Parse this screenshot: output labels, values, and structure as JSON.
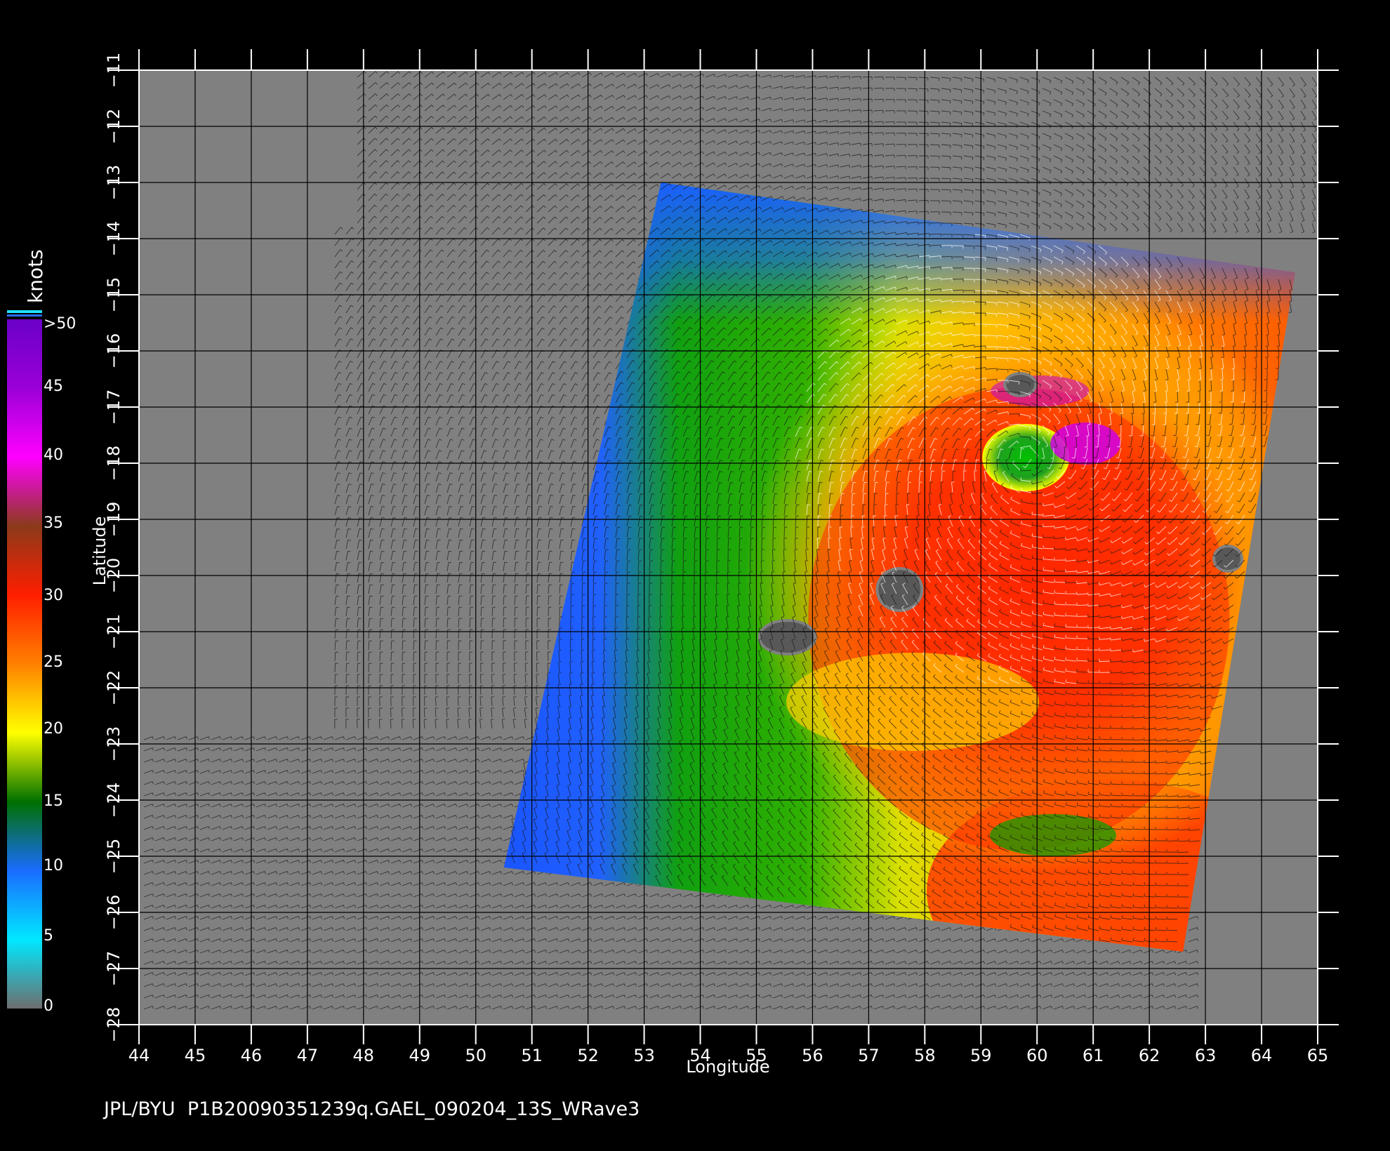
{
  "map": {
    "x_axis_label": "Longitude",
    "y_axis_label": "Latitude",
    "lon_range": [
      44,
      65
    ],
    "lat_range": [
      -28,
      -11
    ],
    "lon_ticks": [
      "44",
      "45",
      "46",
      "47",
      "48",
      "49",
      "50",
      "51",
      "52",
      "53",
      "54",
      "55",
      "56",
      "57",
      "58",
      "59",
      "60",
      "61",
      "62",
      "63",
      "64",
      "65"
    ],
    "lat_ticks": [
      "-11",
      "-12",
      "-13",
      "-14",
      "-15",
      "-16",
      "-17",
      "-18",
      "-19",
      "-20",
      "-21",
      "-22",
      "-23",
      "-24",
      "-25",
      "-26",
      "-27",
      "-28"
    ],
    "grid": true,
    "background_color": "#808080",
    "swath_corners_lonlat": [
      [
        53.3,
        -13.0
      ],
      [
        64.6,
        -14.6
      ],
      [
        62.6,
        -26.7
      ],
      [
        50.5,
        -25.2
      ]
    ],
    "eye_center_lonlat": [
      59.8,
      -17.9
    ],
    "land_masses_lonlat": [
      {
        "name": "",
        "center": [
          55.55,
          -21.1
        ]
      },
      {
        "name": "",
        "center": [
          57.55,
          -20.25
        ]
      },
      {
        "name": "",
        "center": [
          63.4,
          -19.7
        ]
      },
      {
        "name": "",
        "center": [
          59.7,
          -16.6
        ]
      }
    ]
  },
  "colorbar": {
    "title": "knots",
    "labels": [
      ">50",
      "45",
      "40",
      "35",
      "30",
      "25",
      "20",
      "15",
      "10",
      "5",
      "0"
    ],
    "stops": [
      {
        "v": 0,
        "color": "#6e6e6e"
      },
      {
        "v": 5,
        "color": "#00e8ff"
      },
      {
        "v": 10,
        "color": "#1a6cff"
      },
      {
        "v": 15,
        "color": "#007000"
      },
      {
        "v": 20,
        "color": "#ffff00"
      },
      {
        "v": 25,
        "color": "#ff8000"
      },
      {
        "v": 30,
        "color": "#ff1e00"
      },
      {
        "v": 35,
        "color": "#8b3a1a"
      },
      {
        "v": 40,
        "color": "#ff00ff"
      },
      {
        "v": 45,
        "color": "#9b00d8"
      },
      {
        "v": 50,
        "color": "#6a00c8"
      }
    ]
  },
  "footer": {
    "text": "JPL/BYU  P1B20090351239q.GAEL_090204_13S_WRave3"
  }
}
